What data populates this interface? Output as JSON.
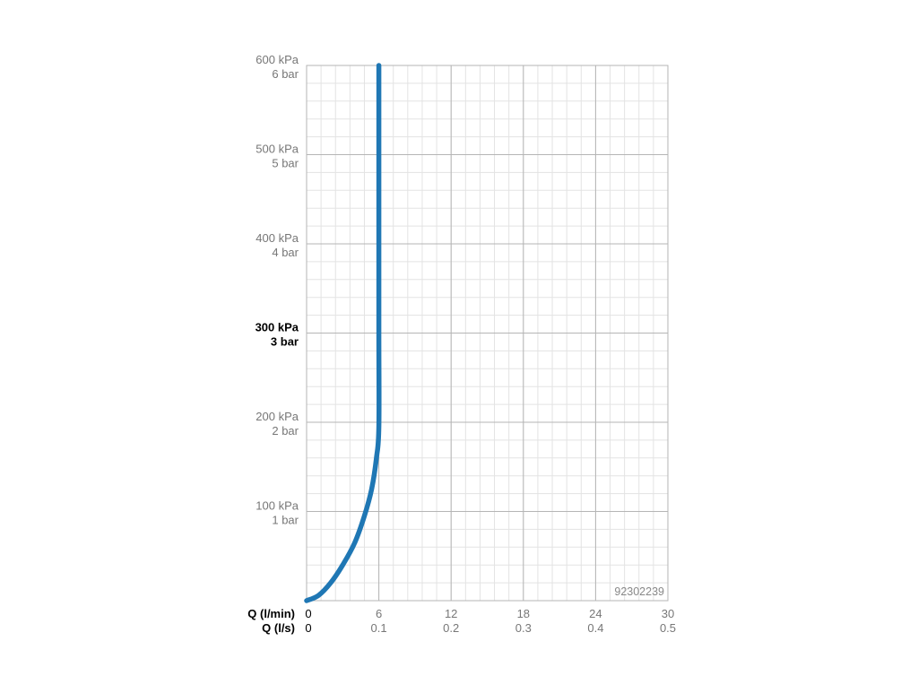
{
  "chart_data": {
    "type": "line",
    "title": "",
    "xlim": [
      0,
      30
    ],
    "ylim": [
      0,
      600
    ],
    "grid": true,
    "y_ticks": [
      {
        "value": 600,
        "line1": "600 kPa",
        "line2": "6 bar",
        "bold": false
      },
      {
        "value": 500,
        "line1": "500 kPa",
        "line2": "5 bar",
        "bold": false
      },
      {
        "value": 400,
        "line1": "400 kPa",
        "line2": "4 bar",
        "bold": false
      },
      {
        "value": 300,
        "line1": "300 kPa",
        "line2": "3 bar",
        "bold": true
      },
      {
        "value": 200,
        "line1": "200 kPa",
        "line2": "2 bar",
        "bold": false
      },
      {
        "value": 100,
        "line1": "100 kPa",
        "line2": "1 bar",
        "bold": false
      }
    ],
    "x_axis_label_primary": "Q (l/min)",
    "x_axis_label_secondary": "Q (l/s)",
    "x_ticks": [
      {
        "value": 0,
        "primary": "0",
        "secondary": "0"
      },
      {
        "value": 6,
        "primary": "6",
        "secondary": "0.1"
      },
      {
        "value": 12,
        "primary": "12",
        "secondary": "0.2"
      },
      {
        "value": 18,
        "primary": "18",
        "secondary": "0.3"
      },
      {
        "value": 24,
        "primary": "24",
        "secondary": "0.4"
      },
      {
        "value": 30,
        "primary": "30",
        "secondary": "0.5"
      }
    ],
    "series": [
      {
        "color": "#1f77b4",
        "x": [
          0,
          1,
          2,
          3,
          4,
          4.8,
          5.4,
          5.8,
          6.0,
          6.0,
          6.0,
          6.0
        ],
        "y": [
          0,
          6,
          20,
          40,
          65,
          95,
          125,
          160,
          195,
          300,
          450,
          600
        ]
      }
    ],
    "annotation": "92302239"
  }
}
